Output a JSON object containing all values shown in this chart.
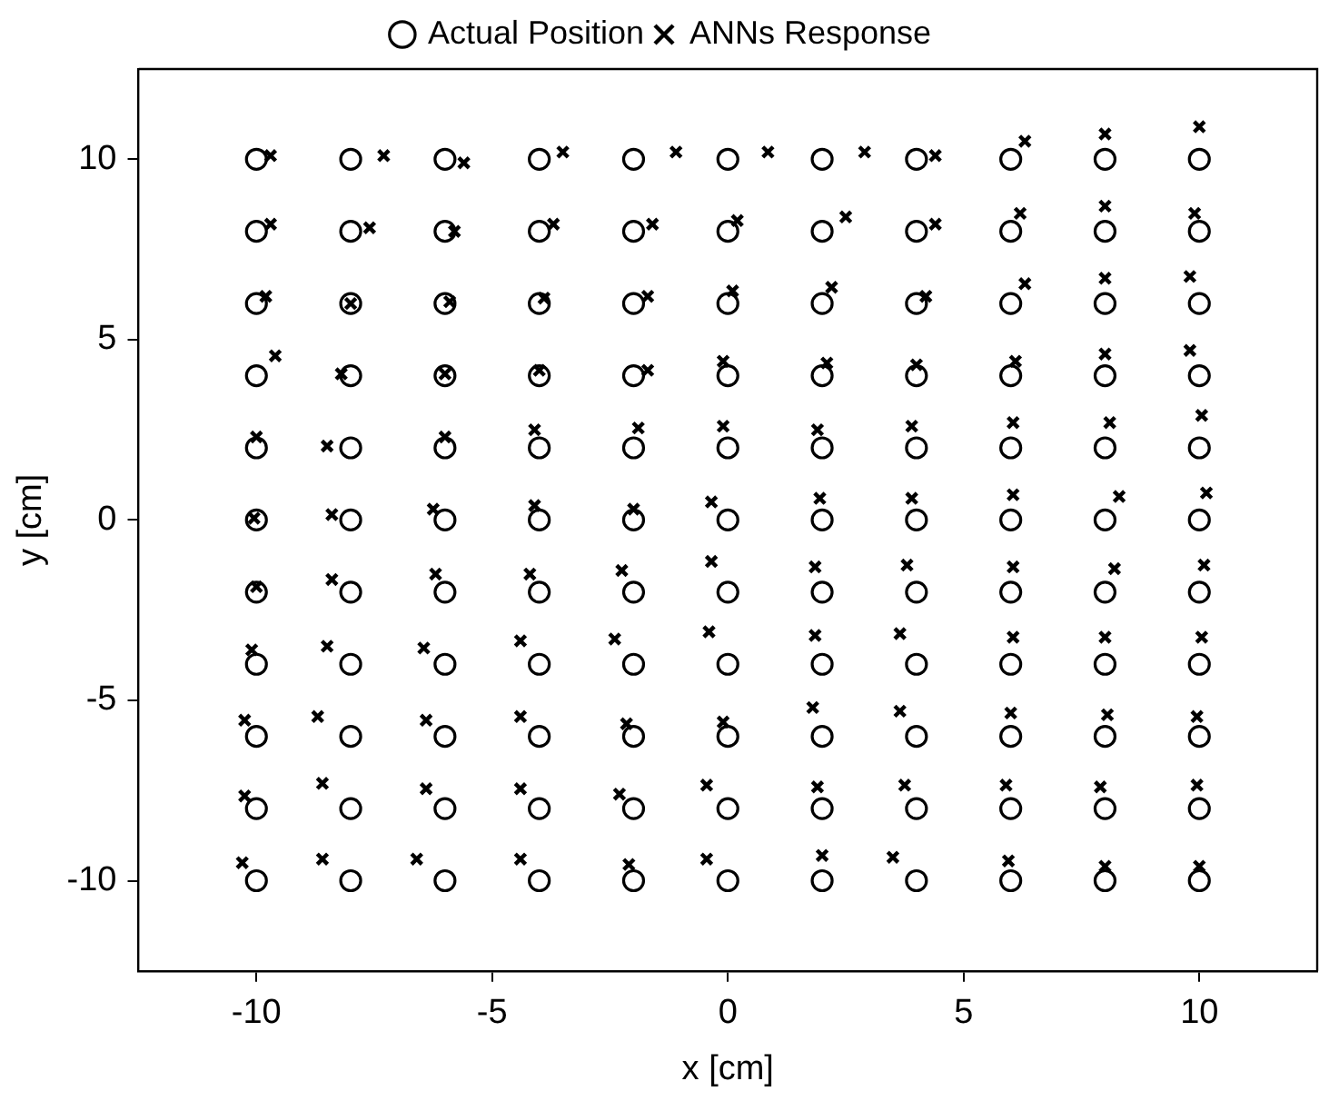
{
  "chart_data": {
    "type": "scatter",
    "xlabel": "x [cm]",
    "ylabel": "y [cm]",
    "xlim": [
      -12.5,
      12.5
    ],
    "ylim": [
      -12.5,
      12.5
    ],
    "xticks": [
      -10,
      -5,
      0,
      5,
      10
    ],
    "yticks": [
      -10,
      -5,
      0,
      5,
      10
    ],
    "grid": false,
    "legend": "top",
    "series": [
      {
        "name": "Actual Position",
        "color": "#000000",
        "marker": "circle",
        "x": [
          -10,
          -8,
          -6,
          -4,
          -2,
          0,
          2,
          4,
          6,
          8,
          10,
          -10,
          -8,
          -6,
          -4,
          -2,
          0,
          2,
          4,
          6,
          8,
          10,
          -10,
          -8,
          -6,
          -4,
          -2,
          0,
          2,
          4,
          6,
          8,
          10,
          -10,
          -8,
          -6,
          -4,
          -2,
          0,
          2,
          4,
          6,
          8,
          10,
          -10,
          -8,
          -6,
          -4,
          -2,
          0,
          2,
          4,
          6,
          8,
          10,
          -10,
          -8,
          -6,
          -4,
          -2,
          0,
          2,
          4,
          6,
          8,
          10,
          -10,
          -8,
          -6,
          -4,
          -2,
          0,
          2,
          4,
          6,
          8,
          10,
          -10,
          -8,
          -6,
          -4,
          -2,
          0,
          2,
          4,
          6,
          8,
          10,
          -10,
          -8,
          -6,
          -4,
          -2,
          0,
          2,
          4,
          6,
          8,
          10,
          -10,
          -8,
          -6,
          -4,
          -2,
          0,
          2,
          4,
          6,
          8,
          10,
          -10,
          -8,
          -6,
          -4,
          -2,
          0,
          2,
          4,
          6,
          8,
          10
        ],
        "values": [
          10,
          10,
          10,
          10,
          10,
          10,
          10,
          10,
          10,
          10,
          10,
          8,
          8,
          8,
          8,
          8,
          8,
          8,
          8,
          8,
          8,
          8,
          6,
          6,
          6,
          6,
          6,
          6,
          6,
          6,
          6,
          6,
          6,
          4,
          4,
          4,
          4,
          4,
          4,
          4,
          4,
          4,
          4,
          4,
          2,
          2,
          2,
          2,
          2,
          2,
          2,
          2,
          2,
          2,
          2,
          0,
          0,
          0,
          0,
          0,
          0,
          0,
          0,
          0,
          0,
          0,
          -2,
          -2,
          -2,
          -2,
          -2,
          -2,
          -2,
          -2,
          -2,
          -2,
          -2,
          -4,
          -4,
          -4,
          -4,
          -4,
          -4,
          -4,
          -4,
          -4,
          -4,
          -4,
          -6,
          -6,
          -6,
          -6,
          -6,
          -6,
          -6,
          -6,
          -6,
          -6,
          -6,
          -8,
          -8,
          -8,
          -8,
          -8,
          -8,
          -8,
          -8,
          -8,
          -8,
          -8,
          -10,
          -10,
          -10,
          -10,
          -10,
          -10,
          -10,
          -10,
          -10,
          -10,
          -10
        ]
      },
      {
        "name": "ANNs Response",
        "color": "#000000",
        "marker": "cross",
        "x": [
          -9.7,
          -7.3,
          -5.6,
          -3.5,
          -1.1,
          0.85,
          2.9,
          4.4,
          6.3,
          8.0,
          10.0,
          -9.7,
          -7.6,
          -5.8,
          -3.7,
          -1.6,
          0.2,
          2.5,
          4.4,
          6.2,
          8.0,
          9.9,
          -9.8,
          -8.0,
          -5.9,
          -3.9,
          -1.7,
          0.1,
          2.2,
          4.2,
          6.3,
          8.0,
          9.8,
          -9.6,
          -8.2,
          -6.0,
          -4.0,
          -1.7,
          -0.1,
          2.1,
          4.0,
          6.1,
          8.0,
          9.8,
          -10.0,
          -8.5,
          -6.0,
          -4.1,
          -1.9,
          -0.1,
          1.9,
          3.9,
          6.05,
          8.1,
          10.05,
          -10.05,
          -8.4,
          -6.25,
          -4.1,
          -2.0,
          -0.35,
          1.95,
          3.9,
          6.05,
          8.3,
          10.15,
          -10.0,
          -8.4,
          -6.2,
          -4.2,
          -2.25,
          -0.35,
          1.85,
          3.8,
          6.05,
          8.2,
          10.1,
          -10.1,
          -8.5,
          -6.45,
          -4.4,
          -2.4,
          -0.4,
          1.85,
          3.65,
          6.05,
          8.0,
          10.05,
          -10.25,
          -8.7,
          -6.4,
          -4.4,
          -2.15,
          -0.1,
          1.8,
          3.65,
          6.0,
          8.05,
          9.95,
          -10.25,
          -8.6,
          -6.4,
          -4.4,
          -2.3,
          -0.45,
          1.9,
          3.75,
          5.9,
          7.9,
          9.95,
          -10.3,
          -8.6,
          -6.6,
          -4.4,
          -2.1,
          -0.45,
          2.0,
          3.5,
          5.95,
          8.0,
          10.0
        ],
        "values": [
          10.1,
          10.1,
          9.9,
          10.2,
          10.2,
          10.2,
          10.2,
          10.1,
          10.5,
          10.7,
          10.9,
          8.2,
          8.1,
          8.0,
          8.2,
          8.2,
          8.3,
          8.4,
          8.2,
          8.5,
          8.7,
          8.5,
          6.2,
          6.0,
          6.05,
          6.15,
          6.2,
          6.35,
          6.45,
          6.2,
          6.55,
          6.7,
          6.75,
          4.55,
          4.05,
          4.05,
          4.15,
          4.15,
          4.4,
          4.35,
          4.3,
          4.4,
          4.6,
          4.7,
          2.3,
          2.05,
          2.3,
          2.5,
          2.55,
          2.6,
          2.5,
          2.6,
          2.7,
          2.7,
          2.9,
          0.05,
          0.15,
          0.3,
          0.4,
          0.3,
          0.5,
          0.6,
          0.6,
          0.7,
          0.65,
          0.75,
          -1.85,
          -1.65,
          -1.5,
          -1.5,
          -1.4,
          -1.15,
          -1.3,
          -1.25,
          -1.3,
          -1.35,
          -1.25,
          -3.6,
          -3.5,
          -3.55,
          -3.35,
          -3.3,
          -3.1,
          -3.2,
          -3.15,
          -3.25,
          -3.25,
          -3.25,
          -5.55,
          -5.45,
          -5.55,
          -5.45,
          -5.65,
          -5.6,
          -5.2,
          -5.3,
          -5.35,
          -5.4,
          -5.45,
          -7.65,
          -7.3,
          -7.45,
          -7.45,
          -7.6,
          -7.35,
          -7.4,
          -7.35,
          -7.35,
          -7.4,
          -7.35,
          -9.5,
          -9.4,
          -9.4,
          -9.4,
          -9.55,
          -9.4,
          -9.3,
          -9.35,
          -9.45,
          -9.6,
          -9.6
        ]
      }
    ]
  }
}
